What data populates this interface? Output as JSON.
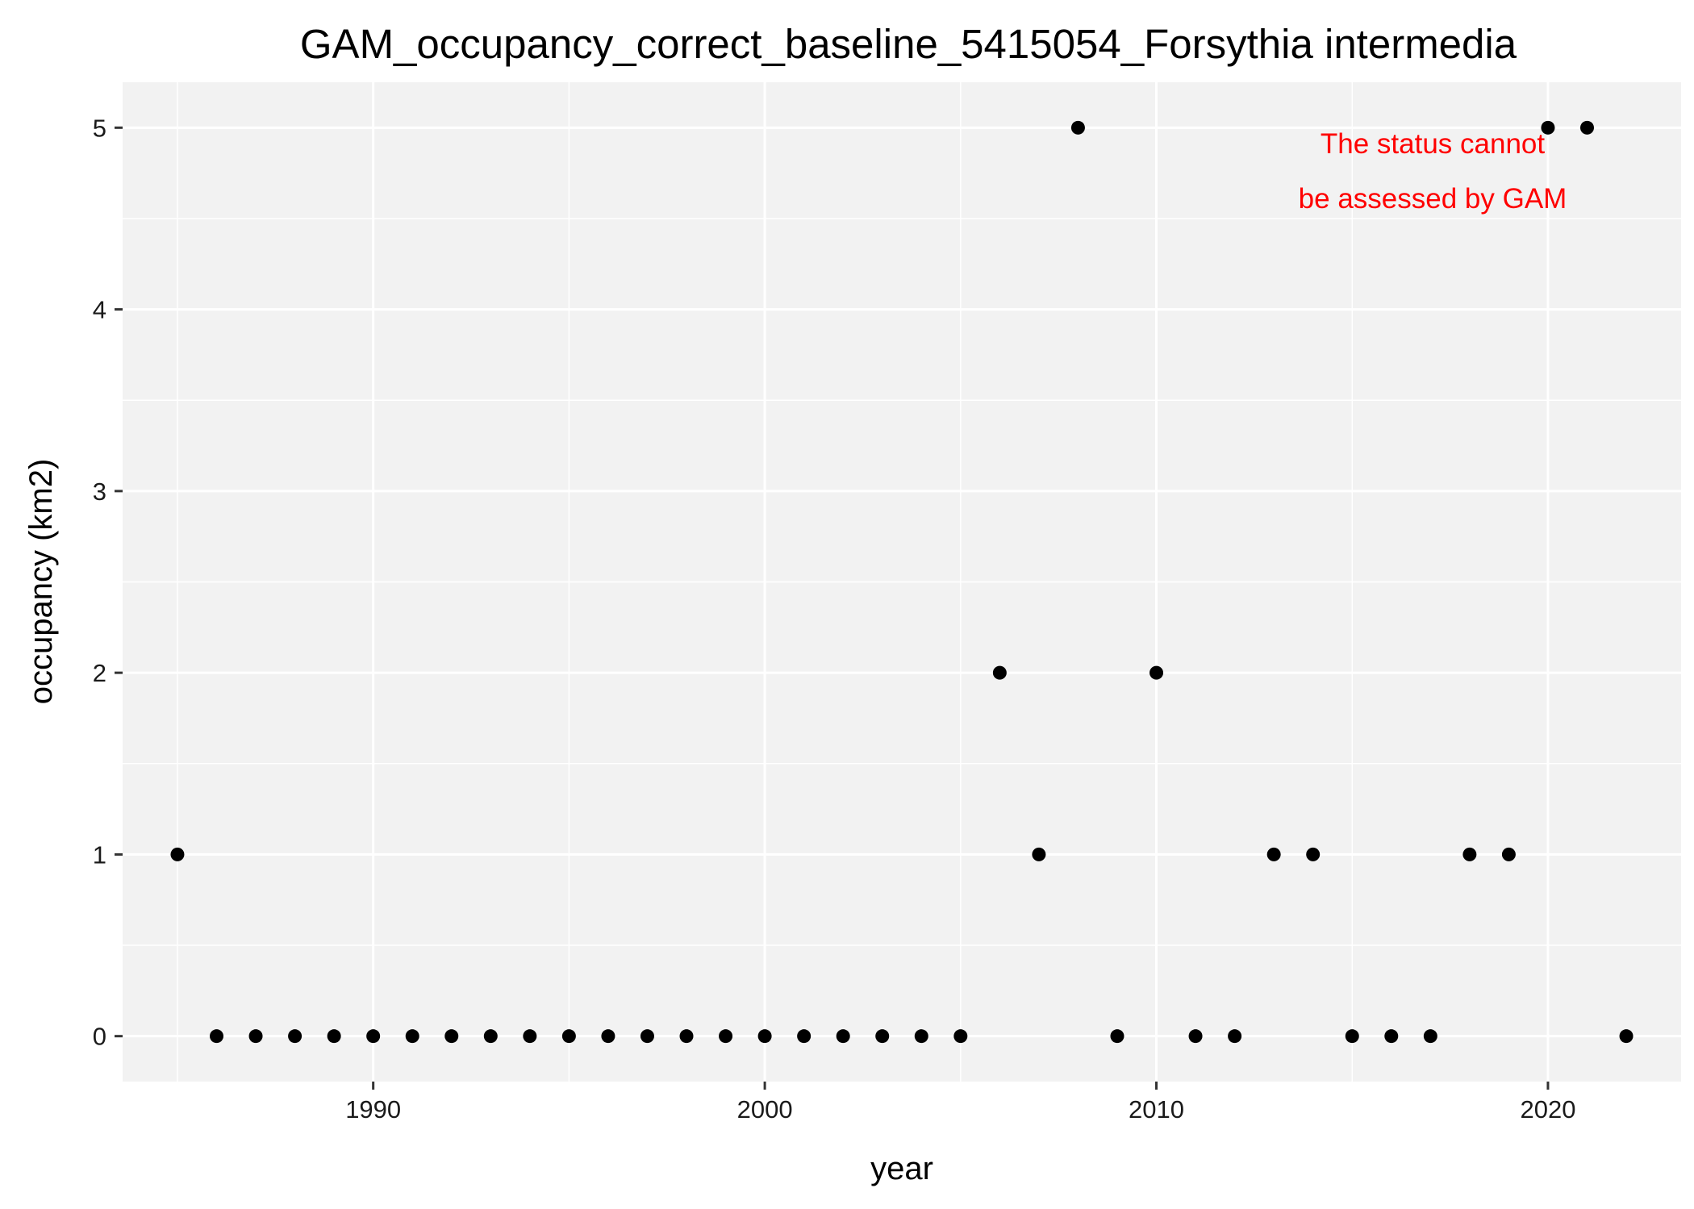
{
  "chart_data": {
    "type": "scatter",
    "title": "GAM_occupancy_correct_baseline_5415054_Forsythia intermedia",
    "xlabel": "year",
    "ylabel": "occupancy (km2)",
    "xlim": [
      1983.6,
      2023.4
    ],
    "ylim": [
      -0.25,
      5.25
    ],
    "x_ticks": [
      1990,
      2000,
      2010,
      2020
    ],
    "x_tick_labels": [
      "1990",
      "2000",
      "2010",
      "2020"
    ],
    "y_ticks": [
      0,
      1,
      2,
      3,
      4,
      5
    ],
    "y_tick_labels": [
      "0",
      "1",
      "2",
      "3",
      "4",
      "5"
    ],
    "grid": true,
    "panel_background": "#f2f2f2",
    "point_color": "#000000",
    "series": [
      {
        "x": [
          1985,
          1986,
          1987,
          1988,
          1989,
          1990,
          1991,
          1992,
          1993,
          1994,
          1995,
          1996,
          1997,
          1998,
          1999,
          2000,
          2001,
          2002,
          2003,
          2004,
          2005,
          2006,
          2007,
          2008,
          2009,
          2010,
          2011,
          2012,
          2013,
          2014,
          2015,
          2016,
          2017,
          2018,
          2019,
          2020,
          2021,
          2022
        ],
        "y": [
          1,
          0,
          0,
          0,
          0,
          0,
          0,
          0,
          0,
          0,
          0,
          0,
          0,
          0,
          0,
          0,
          0,
          0,
          0,
          0,
          0,
          2,
          1,
          5,
          0,
          2,
          0,
          0,
          1,
          1,
          0,
          0,
          0,
          1,
          1,
          5,
          5,
          0
        ]
      }
    ],
    "annotation": {
      "lines": [
        "The status cannot",
        "be assessed by GAM"
      ],
      "color": "#ff0000",
      "placement": "top-right"
    }
  }
}
